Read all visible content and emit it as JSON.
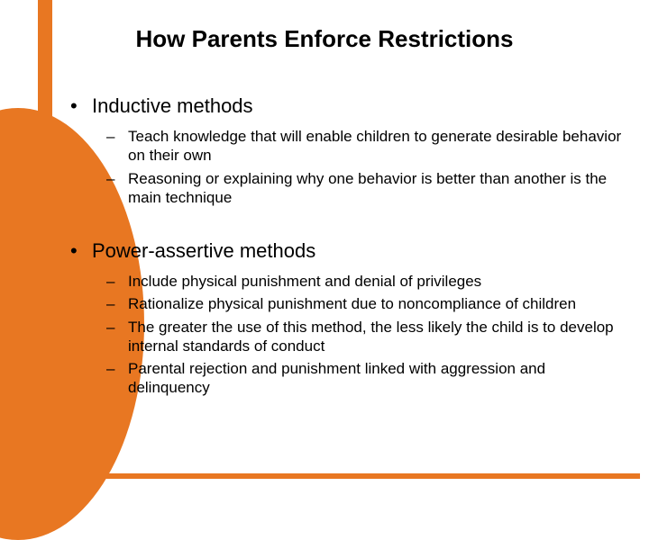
{
  "colors": {
    "accent": "#e87722",
    "background": "#ffffff",
    "text": "#000000"
  },
  "typography": {
    "title_fontsize": 26,
    "main_bullet_fontsize": 22,
    "sub_bullet_fontsize": 17,
    "font_family": "Arial"
  },
  "title": "How Parents Enforce Restrictions",
  "sections": [
    {
      "heading": "Inductive methods",
      "items": [
        "Teach knowledge that will enable children to generate desirable behavior on their own",
        "Reasoning or explaining why one behavior is better than another is the main technique"
      ]
    },
    {
      "heading": "Power-assertive methods",
      "items": [
        "Include physical punishment and denial of privileges",
        "Rationalize physical punishment due to noncompliance of children",
        "The greater the use of this method, the less likely the child is to develop internal standards of conduct",
        "Parental rejection and punishment linked with aggression and delinquency"
      ]
    }
  ]
}
